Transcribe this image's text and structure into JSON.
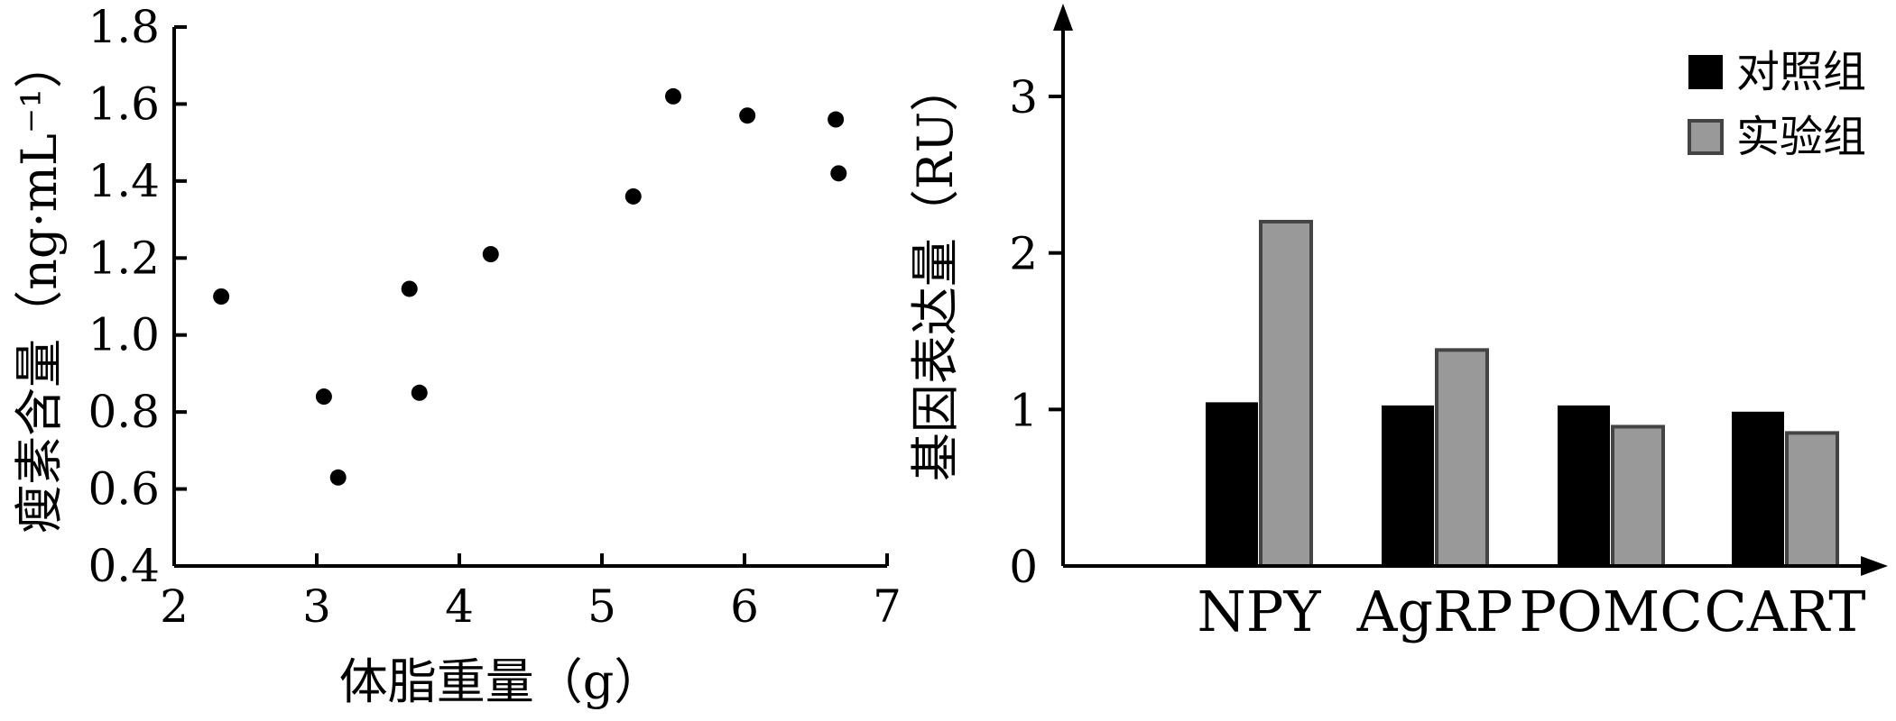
{
  "chart_data": [
    {
      "type": "scatter",
      "title": "",
      "xlabel": "体脂重量（g）",
      "ylabel": "瘦素含量（ng·mL⁻¹）",
      "xlim": [
        2,
        7
      ],
      "ylim": [
        0.4,
        1.8
      ],
      "xticks": [
        2,
        3,
        4,
        5,
        6,
        7
      ],
      "yticks": [
        "0.4",
        "0.6",
        "0.8",
        "1.0",
        "1.2",
        "1.4",
        "1.6",
        "1.8"
      ],
      "points": [
        {
          "x": 2.33,
          "y": 1.1
        },
        {
          "x": 3.05,
          "y": 0.84
        },
        {
          "x": 3.15,
          "y": 0.63
        },
        {
          "x": 3.65,
          "y": 1.12
        },
        {
          "x": 3.72,
          "y": 0.85
        },
        {
          "x": 4.22,
          "y": 1.21
        },
        {
          "x": 5.22,
          "y": 1.36
        },
        {
          "x": 5.5,
          "y": 1.62
        },
        {
          "x": 6.02,
          "y": 1.57
        },
        {
          "x": 6.64,
          "y": 1.56
        },
        {
          "x": 6.66,
          "y": 1.42
        }
      ],
      "grid": false,
      "marker_color": "#000000"
    },
    {
      "type": "bar",
      "title": "",
      "xlabel": "",
      "ylabel": "基因表达量（RU）",
      "ylim": [
        0,
        3
      ],
      "yticks": [
        "0",
        "1",
        "2",
        "3"
      ],
      "categories": [
        "NPY",
        "AgRP",
        "POMC",
        "CART"
      ],
      "series": [
        {
          "name": "对照组",
          "color": "#000000",
          "values": [
            1.04,
            1.02,
            1.02,
            0.98
          ]
        },
        {
          "name": "实验组",
          "color": "#999999",
          "values": [
            2.2,
            1.38,
            0.89,
            0.85
          ]
        }
      ],
      "legend": "top-right",
      "grid": false
    }
  ]
}
